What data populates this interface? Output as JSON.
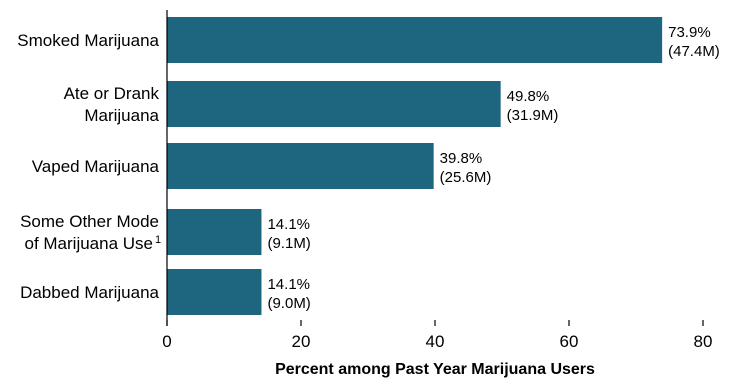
{
  "chart_data": {
    "type": "bar",
    "orientation": "horizontal",
    "xlabel": "Percent among Past Year Marijuana Users",
    "ylabel": "",
    "xlim": [
      0,
      80
    ],
    "xticks": [
      0,
      20,
      40,
      60,
      80
    ],
    "grid": false,
    "bar_color": "#1e6580",
    "categories": [
      {
        "lines": [
          "Smoked Marijuana"
        ],
        "superscript": ""
      },
      {
        "lines": [
          "Ate or Drank",
          "Marijuana"
        ],
        "superscript": ""
      },
      {
        "lines": [
          "Vaped Marijuana"
        ],
        "superscript": ""
      },
      {
        "lines": [
          "Some Other Mode",
          "of Marijuana Use"
        ],
        "superscript": "1"
      },
      {
        "lines": [
          "Dabbed Marijuana"
        ],
        "superscript": ""
      }
    ],
    "values": [
      73.9,
      49.8,
      39.8,
      14.1,
      14.1
    ],
    "data_labels": [
      {
        "percent": "73.9%",
        "count": "(47.4M)"
      },
      {
        "percent": "49.8%",
        "count": "(31.9M)"
      },
      {
        "percent": "39.8%",
        "count": "(25.6M)"
      },
      {
        "percent": "14.1%",
        "count": "(9.1M)"
      },
      {
        "percent": "14.1%",
        "count": "(9.0M)"
      }
    ]
  }
}
